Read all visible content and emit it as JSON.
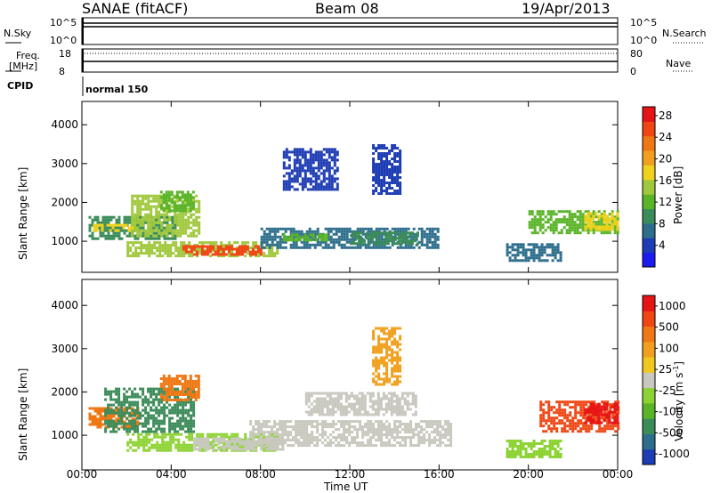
{
  "header": {
    "radar": "SANAE (fitACF)",
    "beam": "Beam 08",
    "date": "19/Apr/2013"
  },
  "summary_panel": {
    "nsky_label": "N.Sky",
    "nsky_ticks": [
      "10^5",
      "10^0"
    ],
    "nsearch_label": "N.Search",
    "nsearch_ticks": [
      "10^5",
      "10^0"
    ],
    "freq_label": "Freq.",
    "freq_unit": "[MHz]",
    "freq_ticks": [
      "18",
      "8"
    ],
    "nave_label": "Nave",
    "nave_ticks": [
      "80",
      "0"
    ],
    "cpid_label": "CPID",
    "cpid_value": "normal 150"
  },
  "chart_data": [
    {
      "type": "heatmap",
      "name": "power",
      "ylabel": "Slant Range [km]",
      "xlabel": "Time UT",
      "x_ticks": [
        "00:00",
        "04:00",
        "08:00",
        "12:00",
        "16:00",
        "20:00",
        "00:00"
      ],
      "y_ticks": [
        "1000",
        "2000",
        "3000",
        "4000"
      ],
      "ylim": [
        200,
        4600
      ],
      "xlim_hours": [
        0,
        24
      ],
      "colorbar": {
        "label": "Power [dB]",
        "ticks": [
          "4",
          "8",
          "12",
          "16",
          "20",
          "24",
          "28"
        ],
        "range": [
          0,
          30
        ],
        "colors": [
          "#1c1cf0",
          "#1e3cb4",
          "#2d6e8c",
          "#3c8c5a",
          "#5ab428",
          "#a0c83c",
          "#f0d21e",
          "#f0a01e",
          "#f07814",
          "#f04614",
          "#e61414"
        ]
      },
      "regions": [
        {
          "t0": 0.3,
          "t1": 4.2,
          "r0": 1050,
          "r1": 1650,
          "level": 3
        },
        {
          "t0": 0.5,
          "t1": 2.5,
          "r0": 1250,
          "r1": 1450,
          "level": 6
        },
        {
          "t0": 2.2,
          "t1": 5.2,
          "r0": 1100,
          "r1": 2200,
          "level": 5
        },
        {
          "t0": 3.5,
          "t1": 5.0,
          "r0": 1800,
          "r1": 2300,
          "level": 4
        },
        {
          "t0": 2.0,
          "t1": 8.8,
          "r0": 650,
          "r1": 1000,
          "level": 5
        },
        {
          "t0": 4.5,
          "t1": 8.0,
          "r0": 650,
          "r1": 900,
          "level": 9
        },
        {
          "t0": 8.0,
          "t1": 16.0,
          "r0": 800,
          "r1": 1350,
          "level": 2
        },
        {
          "t0": 9.0,
          "t1": 11.0,
          "r0": 1000,
          "r1": 1200,
          "level": 4
        },
        {
          "t0": 12.0,
          "t1": 15.0,
          "r0": 950,
          "r1": 1250,
          "level": 3
        },
        {
          "t0": 13.0,
          "t1": 14.2,
          "r0": 2200,
          "r1": 3500,
          "level": 1
        },
        {
          "t0": 9.0,
          "t1": 11.5,
          "r0": 2300,
          "r1": 3400,
          "level": 1
        },
        {
          "t0": 19.0,
          "t1": 21.5,
          "r0": 500,
          "r1": 950,
          "level": 2
        },
        {
          "t0": 20.0,
          "t1": 24.0,
          "r0": 1200,
          "r1": 1800,
          "level": 4
        },
        {
          "t0": 22.5,
          "t1": 24.0,
          "r0": 1300,
          "r1": 1750,
          "level": 6
        }
      ]
    },
    {
      "type": "heatmap",
      "name": "velocity",
      "ylabel": "Slant Range [km]",
      "xlabel": "Time UT",
      "x_ticks": [
        "00:00",
        "04:00",
        "08:00",
        "12:00",
        "16:00",
        "20:00",
        "00:00"
      ],
      "y_ticks": [
        "1000",
        "2000",
        "3000",
        "4000"
      ],
      "ylim": [
        200,
        4600
      ],
      "xlim_hours": [
        0,
        24
      ],
      "colorbar": {
        "label": "Velocity [m s",
        "label_sup": "-1",
        "label_end": "]",
        "ticks": [
          "1000",
          "500",
          "100",
          "25",
          "-25",
          "-100",
          "-500",
          "-1000"
        ],
        "colors": [
          "#1e3cb4",
          "#2d6e8c",
          "#3c8c5a",
          "#5ab428",
          "#8cd232",
          "#c8c8be",
          "#f0c81e",
          "#f0a01e",
          "#f07814",
          "#f04614",
          "#e61414"
        ]
      },
      "regions": [
        {
          "t0": 0.3,
          "t1": 2.5,
          "r0": 1200,
          "r1": 1650,
          "level": 8
        },
        {
          "t0": 1.0,
          "t1": 5.0,
          "r0": 1100,
          "r1": 2100,
          "level": 2
        },
        {
          "t0": 3.5,
          "t1": 5.2,
          "r0": 1800,
          "r1": 2400,
          "level": 8
        },
        {
          "t0": 2.0,
          "t1": 8.8,
          "r0": 650,
          "r1": 1050,
          "level": 4
        },
        {
          "t0": 5.0,
          "t1": 9.0,
          "r0": 650,
          "r1": 950,
          "level": 5
        },
        {
          "t0": 7.5,
          "t1": 16.5,
          "r0": 750,
          "r1": 1350,
          "level": 5
        },
        {
          "t0": 10.0,
          "t1": 15.0,
          "r0": 1500,
          "r1": 2000,
          "level": 5
        },
        {
          "t0": 13.0,
          "t1": 14.2,
          "r0": 2200,
          "r1": 3500,
          "level": 7
        },
        {
          "t0": 19.0,
          "t1": 21.5,
          "r0": 500,
          "r1": 900,
          "level": 4
        },
        {
          "t0": 20.5,
          "t1": 24.0,
          "r0": 1100,
          "r1": 1800,
          "level": 9
        },
        {
          "t0": 22.5,
          "t1": 24.0,
          "r0": 1300,
          "r1": 1750,
          "level": 10
        }
      ]
    }
  ]
}
